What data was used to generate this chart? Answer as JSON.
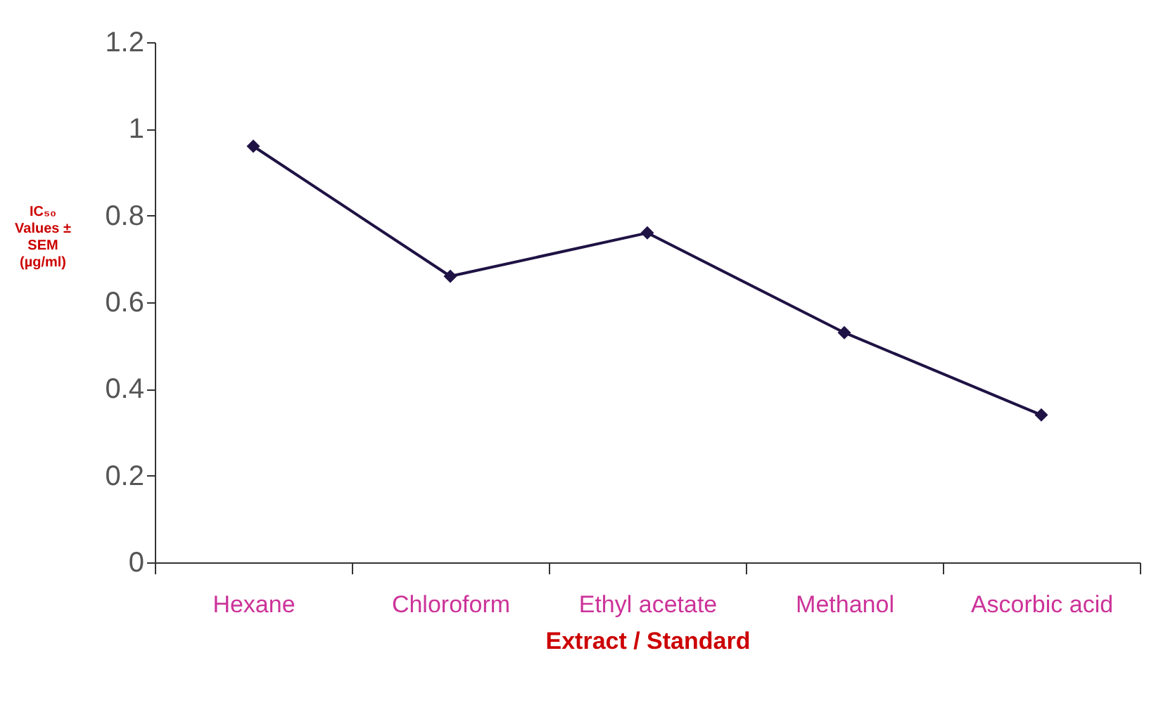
{
  "chart_data": {
    "type": "line",
    "xlabel": "Extract / Standard",
    "ylabel": "IC₅₀ Values ± SEM (µg/ml)",
    "categories": [
      "Hexane",
      "Chloroform",
      "Ethyl acetate",
      "Methanol",
      "Ascorbic acid"
    ],
    "series": [
      {
        "color": "#1f1244",
        "values": [
          0.96,
          0.66,
          0.76,
          0.53,
          0.34
        ]
      }
    ],
    "ylim": [
      0,
      1.2
    ],
    "yticks": [
      0,
      0.2,
      0.4,
      0.6,
      0.8,
      1,
      1.2
    ],
    "grid": false,
    "marker": "diamond",
    "line_style": "solid"
  }
}
